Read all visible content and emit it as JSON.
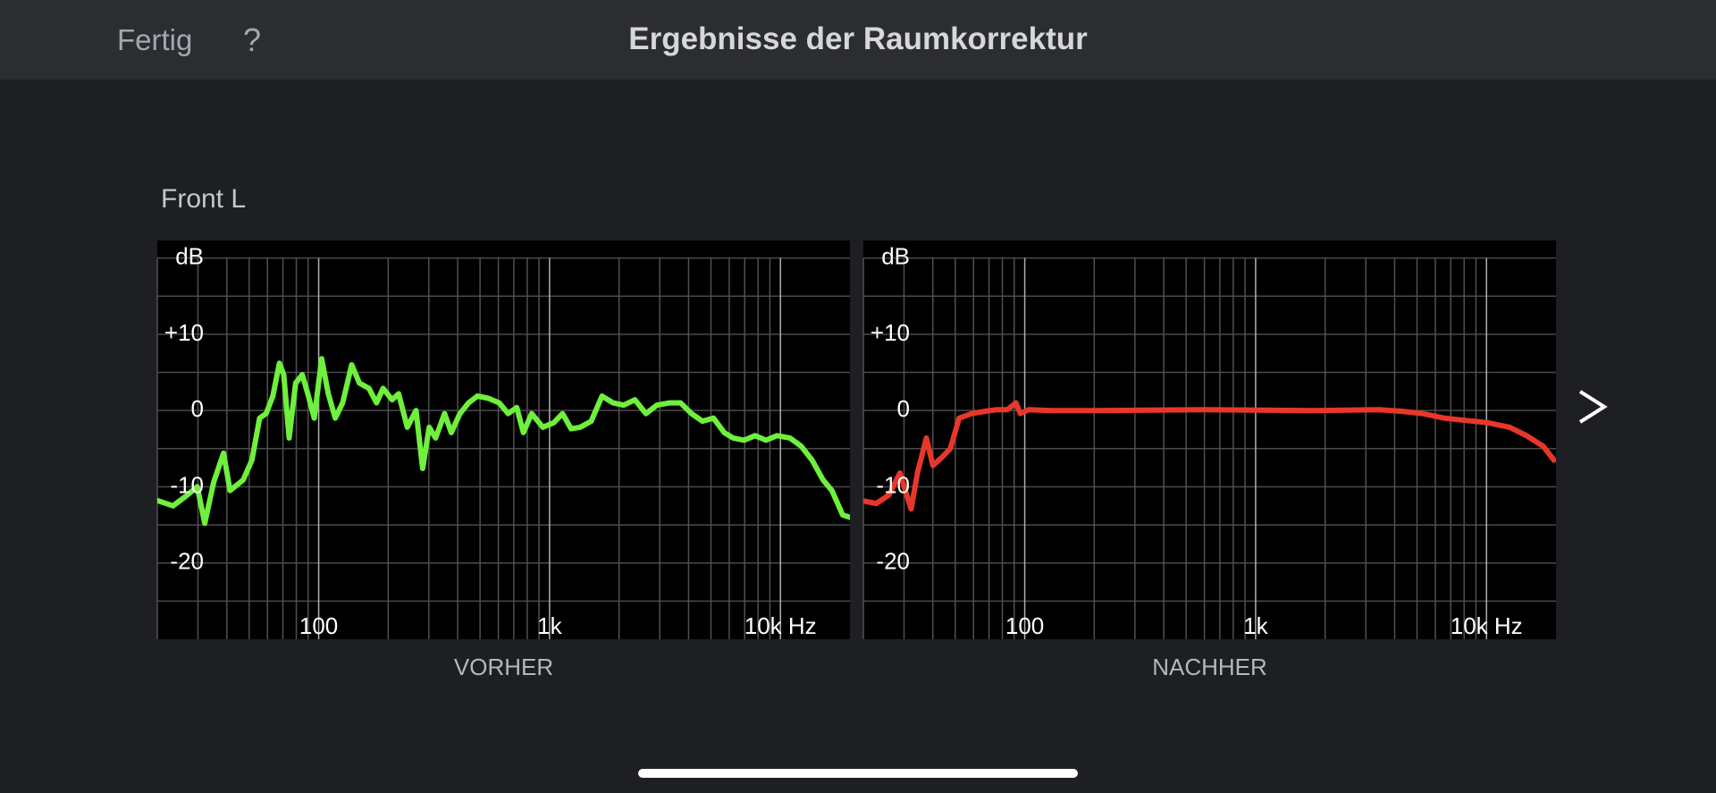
{
  "header": {
    "done": "Fertig",
    "help": "?",
    "title": "Ergebnisse der Raumkorrektur"
  },
  "channel": "Front L",
  "chart_data": [
    {
      "type": "line",
      "xlabel": "VORHER",
      "ylabel": "dB",
      "xscale": "log",
      "color": "#6ef03c",
      "xlim": [
        20,
        20000
      ],
      "ylim": [
        -30,
        22.3
      ],
      "xticks": [
        {
          "value": 100,
          "label": "100"
        },
        {
          "value": 1000,
          "label": "1k"
        },
        {
          "value": 10000,
          "label": "10k Hz"
        }
      ],
      "yticks": [
        {
          "value": 10,
          "label": "+10"
        },
        0,
        -10,
        -20
      ],
      "x_gridlines": [
        20,
        30,
        40,
        50,
        60,
        70,
        80,
        90,
        200,
        300,
        400,
        500,
        600,
        700,
        800,
        900,
        2000,
        3000,
        4000,
        5000,
        6000,
        7000,
        8000,
        9000
      ],
      "y_gridlines": [
        20,
        15,
        5,
        -5,
        -15,
        -25
      ],
      "x": [
        20,
        23.4,
        26.7,
        29.8,
        32.1,
        35.1,
        38.7,
        41.3,
        47.1,
        51.4,
        55.5,
        59.2,
        63.3,
        67.6,
        70.6,
        74.5,
        79.5,
        84.9,
        89.7,
        95.7,
        103,
        110,
        118,
        127,
        139,
        150,
        165,
        178,
        190,
        208,
        222,
        242,
        264,
        282,
        301,
        321,
        351,
        375,
        409,
        446,
        487,
        543,
        605,
        661,
        721,
        770,
        837,
        935,
        1043,
        1138,
        1240,
        1358,
        1515,
        1688,
        1882,
        2093,
        2343,
        2614,
        2915,
        3315,
        3692,
        4120,
        4595,
        5128,
        5710,
        6240,
        6960,
        7770,
        8660,
        9660,
        11000,
        12300,
        13700,
        15300,
        16700,
        18600,
        20000
      ],
      "values": [
        -11.8,
        -12.5,
        -11.2,
        -10,
        -14.8,
        -9.4,
        -5.6,
        -10.5,
        -9.1,
        -6.5,
        -1,
        -0.4,
        1.9,
        6.2,
        4.7,
        -3.6,
        3.6,
        4.7,
        2.2,
        -1,
        6.8,
        2.2,
        -1,
        1,
        6,
        3.6,
        2.9,
        1,
        2.9,
        1.4,
        2.2,
        -2.2,
        0,
        -7.6,
        -2.2,
        -3.6,
        -0.4,
        -2.9,
        -0.4,
        1,
        1.9,
        1.6,
        1,
        -0.4,
        0.4,
        -2.9,
        -0.4,
        -2.2,
        -1.6,
        -0.4,
        -2.4,
        -2.2,
        -1.4,
        1.9,
        1,
        0.7,
        1.4,
        -0.4,
        0.7,
        1,
        1,
        -0.4,
        -1.4,
        -1,
        -2.9,
        -3.6,
        -3.9,
        -3.3,
        -3.9,
        -3.3,
        -3.6,
        -4.7,
        -6.5,
        -9.1,
        -10.5,
        -13.7,
        -14
      ]
    },
    {
      "type": "line",
      "xlabel": "NACHHER",
      "ylabel": "dB",
      "xscale": "log",
      "color": "#e8372a",
      "xlim": [
        20,
        20000
      ],
      "ylim": [
        -30,
        22.3
      ],
      "xticks": [
        {
          "value": 100,
          "label": "100"
        },
        {
          "value": 1000,
          "label": "1k"
        },
        {
          "value": 10000,
          "label": "10k Hz"
        }
      ],
      "yticks": [
        {
          "value": 10,
          "label": "+10"
        },
        0,
        -10,
        -20
      ],
      "x_gridlines": [
        20,
        30,
        40,
        50,
        60,
        70,
        80,
        90,
        200,
        300,
        400,
        500,
        600,
        700,
        800,
        900,
        2000,
        3000,
        4000,
        5000,
        6000,
        7000,
        8000,
        9000
      ],
      "y_gridlines": [
        20,
        15,
        5,
        -5,
        -15,
        -25
      ],
      "x": [
        20.3,
        22.7,
        25.8,
        28.8,
        32.2,
        34.3,
        37.5,
        40,
        43.6,
        47.6,
        52,
        59,
        67.5,
        75.3,
        84,
        91.6,
        95.7,
        104,
        130,
        201,
        598,
        1790,
        3440,
        4270,
        5290,
        6560,
        8140,
        10100,
        12600,
        14900,
        17600,
        19600
      ],
      "values": [
        -11.9,
        -12.2,
        -11.1,
        -8.2,
        -12.9,
        -8.2,
        -3.6,
        -7.2,
        -6.2,
        -5,
        -1,
        -0.4,
        -0.1,
        0.1,
        0.1,
        1,
        -0.4,
        0.1,
        0,
        0,
        0.1,
        0,
        0.1,
        -0.1,
        -0.4,
        -1,
        -1.3,
        -1.6,
        -2.2,
        -3.3,
        -4.7,
        -6.5
      ]
    }
  ]
}
